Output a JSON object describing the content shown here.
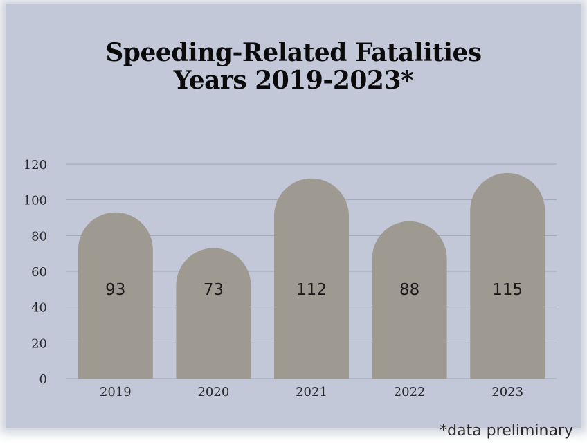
{
  "chart_data": {
    "type": "bar",
    "title_lines": [
      "Speeding-Related Fatalities",
      "Years 2019-2023*"
    ],
    "categories": [
      "2019",
      "2020",
      "2021",
      "2022",
      "2023"
    ],
    "values": [
      93,
      73,
      112,
      88,
      115
    ],
    "data_labels": [
      "93",
      "73",
      "112",
      "88",
      "115"
    ],
    "yticks": [
      0,
      20,
      40,
      60,
      80,
      100,
      120
    ],
    "ylim": [
      0,
      120
    ],
    "grid": true,
    "legend": "none",
    "colors": {
      "bar": "#9e9a92",
      "background": "#c2c8d8",
      "gridline": "#9ea6b8",
      "label": "#1a1a1a"
    }
  },
  "footnote": "*data preliminary"
}
